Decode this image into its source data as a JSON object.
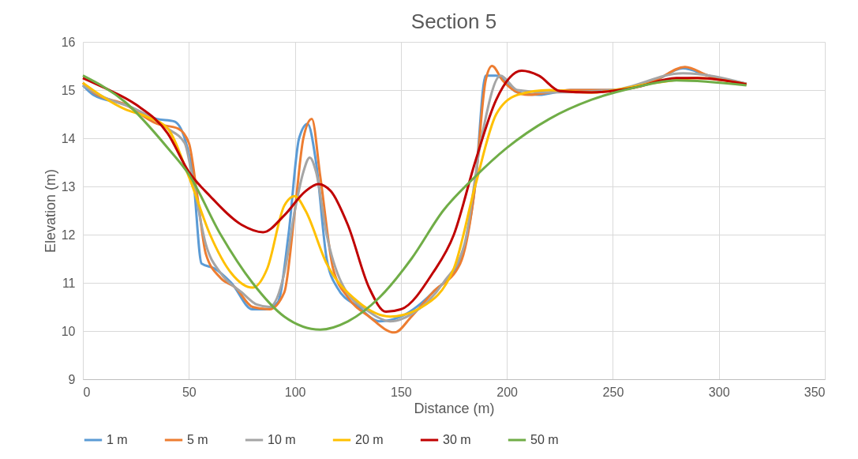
{
  "chart_data": {
    "type": "line",
    "title": "Section 5",
    "xlabel": "Distance (m)",
    "ylabel": "Elevation (m)",
    "xlim": [
      0,
      350
    ],
    "xticks": [
      0,
      50,
      100,
      150,
      200,
      250,
      300,
      350
    ],
    "ylim": [
      9,
      16
    ],
    "yticks": [
      9,
      10,
      11,
      12,
      13,
      14,
      15,
      16
    ],
    "grid": true,
    "legend": "bottom",
    "marker": "none",
    "line_style": "solid",
    "series": [
      {
        "name": "1 m",
        "color": "#5b9bd5",
        "x": [
          0,
          5,
          20,
          35,
          43,
          48,
          52,
          56,
          62,
          70,
          80,
          86,
          92,
          97,
          102,
          106,
          110,
          115,
          120,
          130,
          140,
          150,
          165,
          178,
          185,
          190,
          195,
          205,
          215,
          230,
          250,
          270,
          283,
          295,
          313
        ],
        "values": [
          15.1,
          14.9,
          14.7,
          14.4,
          14.35,
          14.0,
          13.2,
          11.4,
          11.3,
          11.0,
          10.45,
          10.45,
          10.6,
          12.0,
          14.0,
          14.3,
          13.5,
          11.5,
          10.9,
          10.5,
          10.2,
          10.3,
          10.8,
          11.5,
          13.0,
          15.3,
          15.3,
          14.95,
          14.9,
          15.0,
          15.0,
          15.2,
          15.45,
          15.3,
          15.13
        ]
      },
      {
        "name": "5 m",
        "color": "#ed7d31",
        "x": [
          0,
          5,
          20,
          35,
          45,
          50,
          54,
          58,
          65,
          72,
          80,
          88,
          95,
          100,
          104,
          108,
          112,
          118,
          125,
          135,
          147,
          155,
          165,
          178,
          185,
          190,
          193,
          198,
          210,
          230,
          250,
          270,
          284,
          295,
          313
        ],
        "values": [
          15.15,
          14.95,
          14.7,
          14.3,
          14.2,
          13.9,
          12.8,
          11.6,
          11.1,
          10.9,
          10.5,
          10.45,
          10.8,
          12.5,
          14.0,
          14.4,
          13.2,
          11.3,
          10.7,
          10.3,
          9.97,
          10.3,
          10.8,
          11.4,
          13.0,
          15.2,
          15.5,
          15.2,
          14.9,
          15.0,
          15.0,
          15.2,
          15.48,
          15.3,
          15.13
        ]
      },
      {
        "name": "10 m",
        "color": "#a5a5a5",
        "x": [
          0,
          10,
          25,
          40,
          48,
          52,
          58,
          65,
          75,
          82,
          88,
          95,
          100,
          104,
          107,
          110,
          115,
          122,
          135,
          145,
          155,
          170,
          180,
          188,
          197,
          205,
          220,
          250,
          283,
          313
        ],
        "values": [
          15.1,
          14.85,
          14.6,
          14.2,
          13.9,
          13.1,
          11.8,
          11.2,
          10.8,
          10.55,
          10.5,
          11.2,
          12.5,
          13.3,
          13.6,
          13.3,
          12.0,
          11.0,
          10.4,
          10.2,
          10.35,
          11.0,
          11.8,
          14.0,
          15.3,
          15.0,
          14.95,
          15.0,
          15.35,
          15.13
        ]
      },
      {
        "name": "20 m",
        "color": "#ffc000",
        "x": [
          0,
          20,
          30,
          40,
          50,
          60,
          70,
          80,
          87,
          95,
          100,
          105,
          115,
          130,
          145,
          160,
          175,
          185,
          195,
          205,
          220,
          240,
          270,
          290,
          313
        ],
        "values": [
          15.15,
          14.6,
          14.45,
          14.2,
          13.2,
          12.0,
          11.2,
          10.9,
          11.3,
          12.6,
          12.8,
          12.5,
          11.4,
          10.6,
          10.3,
          10.5,
          11.3,
          13.0,
          14.5,
          14.9,
          15.0,
          14.95,
          15.15,
          15.25,
          15.12
        ]
      },
      {
        "name": "30 m",
        "color": "#c00000",
        "x": [
          0,
          10,
          25,
          40,
          50,
          60,
          75,
          85,
          95,
          105,
          111,
          117,
          125,
          135,
          143,
          150,
          165,
          175,
          185,
          195,
          207,
          215,
          225,
          240,
          260,
          280,
          290,
          313
        ],
        "values": [
          15.25,
          15.05,
          14.7,
          14.1,
          13.3,
          12.8,
          12.2,
          12.05,
          12.4,
          12.9,
          13.05,
          12.9,
          12.2,
          10.9,
          10.4,
          10.45,
          11.2,
          12.0,
          13.5,
          14.8,
          15.4,
          15.3,
          14.98,
          14.95,
          15.05,
          15.25,
          15.25,
          15.12
        ]
      },
      {
        "name": "50 m",
        "color": "#70ad47",
        "x": [
          0,
          20,
          40,
          50,
          65,
          80,
          95,
          112,
          125,
          140,
          155,
          170,
          185,
          200,
          220,
          240,
          260,
          280,
          313
        ],
        "values": [
          15.3,
          14.75,
          13.8,
          13.25,
          12.0,
          11.0,
          10.3,
          10.03,
          10.2,
          10.7,
          11.5,
          12.5,
          13.2,
          13.8,
          14.4,
          14.8,
          15.05,
          15.2,
          15.1
        ]
      }
    ]
  }
}
